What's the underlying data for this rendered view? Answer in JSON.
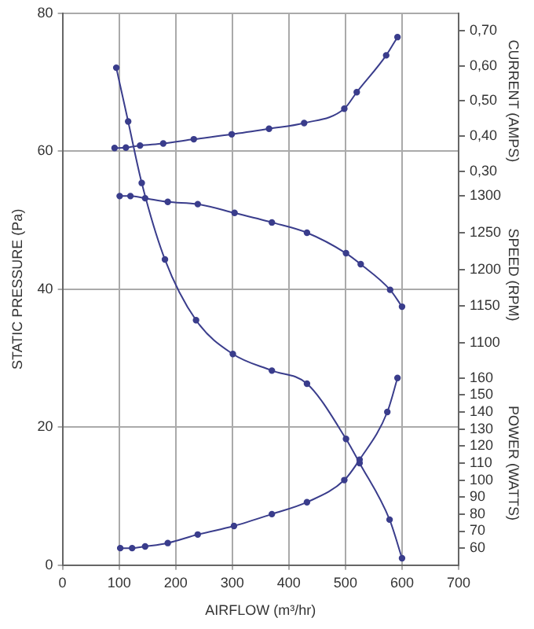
{
  "chart_data": [
    {
      "type": "line",
      "xlabel": "AIRFLOW (m³/hr)",
      "ylabel": "STATIC PRESSURE (Pa)",
      "xlim": [
        0,
        700
      ],
      "xticks": [
        0,
        100,
        200,
        300,
        400,
        500,
        600,
        700
      ],
      "ylim": [
        0,
        80
      ],
      "yticks": [
        0,
        20,
        40,
        60,
        80
      ],
      "grid": true,
      "marker": "circle",
      "line_style": "solid",
      "series": [
        {
          "color": "#3a3d8c",
          "x": [
            95,
            116,
            140,
            181,
            236,
            301,
            370,
            432,
            501,
            525,
            578,
            600
          ],
          "values": [
            72.1,
            64.3,
            55.4,
            44.3,
            35.5,
            30.6,
            28.2,
            26.3,
            18.3,
            14.8,
            6.6,
            1.0
          ]
        }
      ]
    },
    {
      "type": "line",
      "y2label": "CURRENT (AMPS)",
      "xlim": [
        0,
        700
      ],
      "y2lim": [
        0.25,
        0.75
      ],
      "y2ticks": [
        {
          "value": 0.3,
          "label": "0,30"
        },
        {
          "value": 0.4,
          "label": "0,40"
        },
        {
          "value": 0.5,
          "label": "0,50"
        },
        {
          "value": 0.6,
          "label": "0,60"
        },
        {
          "value": 0.7,
          "label": "0,70"
        }
      ],
      "tick_labels": "y",
      "marker": "circle",
      "line_style": "solid",
      "series": [
        {
          "color": "#3a3d8c",
          "axis": "y2",
          "x": [
            92,
            112,
            137,
            178,
            232,
            299,
            365,
            427,
            498,
            520,
            572,
            592
          ],
          "values": [
            0.366,
            0.367,
            0.373,
            0.379,
            0.391,
            0.405,
            0.421,
            0.437,
            0.478,
            0.525,
            0.63,
            0.682
          ]
        }
      ]
    },
    {
      "type": "line",
      "y2label": "SPEED (RPM)",
      "xlim": [
        0,
        700
      ],
      "y2lim": [
        1075,
        1310
      ],
      "y2ticks": [
        1100,
        1150,
        1200,
        1250,
        1300
      ],
      "tick_labels": "y",
      "marker": "circle",
      "line_style": "solid",
      "series": [
        {
          "color": "#3a3d8c",
          "axis": "y2",
          "x": [
            101,
            120,
            146,
            186,
            239,
            304,
            370,
            432,
            501,
            527,
            579,
            600
          ],
          "values": [
            1300,
            1300,
            1297,
            1292,
            1289,
            1277,
            1264,
            1250,
            1222,
            1207,
            1172,
            1149
          ]
        }
      ]
    },
    {
      "type": "line",
      "y2label": "POWER (WATTS)",
      "xlim": [
        0,
        700
      ],
      "y2lim": [
        50,
        170
      ],
      "y2ticks": [
        60,
        70,
        80,
        90,
        100,
        110,
        120,
        130,
        140,
        150,
        160
      ],
      "tick_labels": "y",
      "marker": "circle",
      "line_style": "solid",
      "series": [
        {
          "color": "#3a3d8c",
          "axis": "y2",
          "x": [
            102,
            123,
            146,
            186,
            239,
            303,
            370,
            432,
            498,
            525,
            574,
            592
          ],
          "values": [
            60,
            60,
            61,
            63,
            68,
            73,
            80,
            87,
            100,
            112,
            140,
            160
          ]
        }
      ]
    }
  ]
}
